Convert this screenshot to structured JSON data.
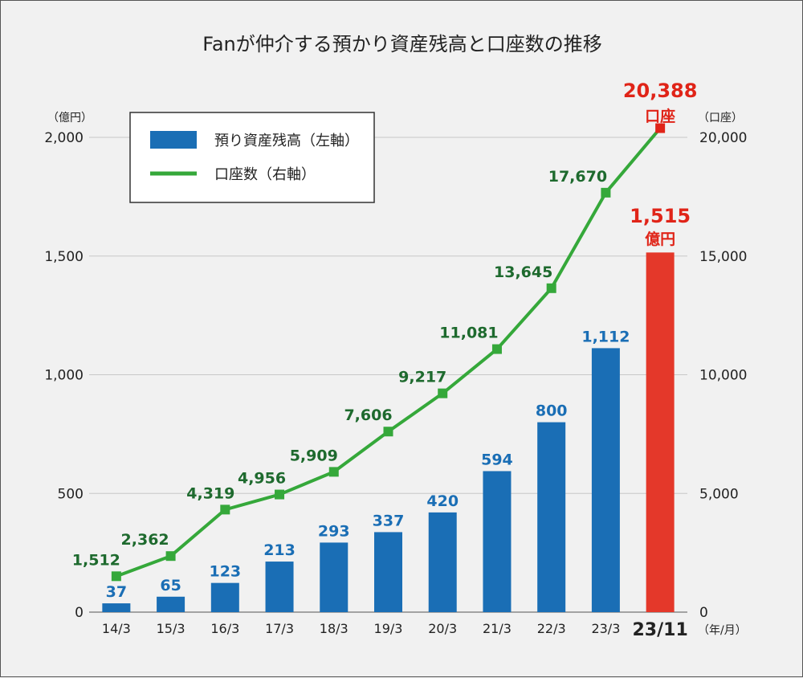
{
  "chart_data": {
    "type": "bar+line",
    "title": "Fanが仲介する預かり資産残高と口座数の推移",
    "categories": [
      "14/3",
      "15/3",
      "16/3",
      "17/3",
      "18/3",
      "19/3",
      "20/3",
      "21/3",
      "22/3",
      "23/3",
      "23/11"
    ],
    "series": [
      {
        "name": "預り資産残高（左軸）",
        "type": "bar",
        "axis": "left",
        "values": [
          37,
          65,
          123,
          213,
          293,
          337,
          420,
          594,
          800,
          1112,
          1515
        ],
        "labels": [
          "37",
          "65",
          "123",
          "213",
          "293",
          "337",
          "420",
          "594",
          "800",
          "1,112",
          "1,515"
        ]
      },
      {
        "name": "口座数（右軸）",
        "type": "line",
        "axis": "right",
        "values": [
          1512,
          2362,
          4319,
          4956,
          5909,
          7606,
          9217,
          11081,
          13645,
          17670,
          20388
        ],
        "labels": [
          "1,512",
          "2,362",
          "4,319",
          "4,956",
          "5,909",
          "7,606",
          "9,217",
          "11,081",
          "13,645",
          "17,670",
          "20,388"
        ]
      }
    ],
    "left_axis": {
      "unit": "（億円）",
      "ylim": [
        0,
        2000
      ],
      "ticks": [
        0,
        500,
        1000,
        1500,
        2000
      ],
      "tick_labels": [
        "0",
        "500",
        "1,000",
        "1,500",
        "2,000"
      ]
    },
    "right_axis": {
      "unit": "（口座）",
      "ylim": [
        0,
        20000
      ],
      "ticks": [
        0,
        5000,
        10000,
        15000,
        20000
      ],
      "tick_labels": [
        "0",
        "5,000",
        "10,000",
        "15,000",
        "20,000"
      ]
    },
    "x_unit": "（年/月）",
    "highlight": {
      "bar_value": "1,515",
      "bar_unit": "億円",
      "line_value": "20,388",
      "line_unit": "口座"
    },
    "legend": [
      {
        "label": "預り資産残高（左軸）",
        "kind": "bar"
      },
      {
        "label": "口座数（右軸）",
        "kind": "line"
      }
    ],
    "legend_position": "top-left",
    "grid": true
  },
  "colors": {
    "bar": "#1a6eb5",
    "bar_highlight": "#e4382a",
    "line": "#35a83a",
    "line_marker_highlight": "#e02418",
    "grid": "#c8c8c8"
  }
}
